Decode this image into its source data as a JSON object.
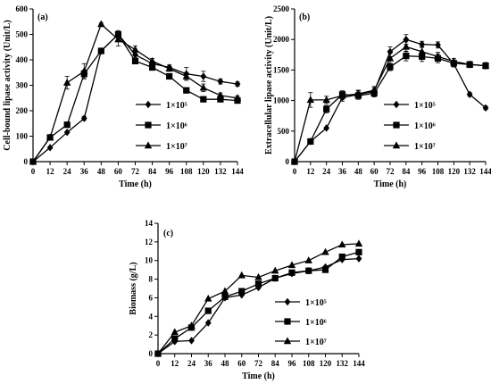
{
  "chart_data": [
    {
      "panel": "(a)",
      "type": "line",
      "xlabel": "Time (h)",
      "ylabel": "Cell-bound lipase activity (Unit/L)",
      "xlim": [
        0,
        144
      ],
      "ylim": [
        0,
        600
      ],
      "x_ticks": [
        0,
        12,
        24,
        36,
        48,
        60,
        72,
        84,
        96,
        108,
        120,
        132,
        144
      ],
      "y_ticks": [
        0,
        100,
        200,
        300,
        400,
        500,
        600
      ],
      "legend_position": "center-right",
      "series": [
        {
          "name": "1×10⁵",
          "marker": "diamond",
          "x": [
            0,
            12,
            24,
            36,
            48,
            60,
            72,
            84,
            96,
            108,
            120,
            132,
            144
          ],
          "y": [
            0,
            55,
            115,
            170,
            435,
            500,
            420,
            385,
            370,
            345,
            335,
            315,
            305
          ],
          "err": [
            0,
            0,
            0,
            8,
            10,
            15,
            12,
            10,
            10,
            25,
            20,
            10,
            8
          ]
        },
        {
          "name": "1×10⁶",
          "marker": "square",
          "x": [
            0,
            12,
            24,
            36,
            48,
            60,
            72,
            84,
            96,
            108,
            120,
            132,
            144
          ],
          "y": [
            0,
            95,
            145,
            345,
            435,
            500,
            395,
            370,
            335,
            280,
            245,
            245,
            240
          ],
          "err": [
            0,
            8,
            0,
            15,
            10,
            10,
            10,
            10,
            10,
            8,
            5,
            5,
            5
          ]
        },
        {
          "name": "1×10⁷",
          "marker": "triangle",
          "x": [
            0,
            12,
            24,
            36,
            48,
            60,
            72,
            84,
            96,
            108,
            120,
            132,
            144
          ],
          "y": [
            0,
            95,
            310,
            355,
            540,
            480,
            440,
            395,
            365,
            335,
            290,
            260,
            250
          ],
          "err": [
            0,
            10,
            25,
            30,
            5,
            25,
            15,
            10,
            10,
            15,
            15,
            10,
            8
          ]
        }
      ]
    },
    {
      "panel": "(b)",
      "type": "line",
      "xlabel": "Time (h)",
      "ylabel": "Extracellular lipase activity (Unit/L)",
      "xlim": [
        0,
        144
      ],
      "ylim": [
        0,
        2500
      ],
      "x_ticks": [
        0,
        12,
        24,
        36,
        48,
        60,
        72,
        84,
        96,
        108,
        120,
        132,
        144
      ],
      "y_ticks": [
        0,
        500,
        1000,
        1500,
        2000,
        2500
      ],
      "legend_position": "center-right",
      "series": [
        {
          "name": "1×10⁵",
          "marker": "diamond",
          "x": [
            0,
            12,
            24,
            36,
            48,
            60,
            72,
            84,
            96,
            108,
            120,
            132,
            144
          ],
          "y": [
            0,
            330,
            550,
            1050,
            1100,
            1150,
            1800,
            2000,
            1920,
            1910,
            1600,
            1100,
            880
          ],
          "err": [
            0,
            0,
            0,
            60,
            60,
            60,
            80,
            80,
            50,
            50,
            50,
            30,
            30
          ]
        },
        {
          "name": "1×10⁶",
          "marker": "square",
          "x": [
            0,
            12,
            24,
            36,
            48,
            60,
            72,
            84,
            96,
            108,
            120,
            132,
            144
          ],
          "y": [
            0,
            330,
            860,
            1100,
            1080,
            1120,
            1550,
            1730,
            1720,
            1690,
            1610,
            1590,
            1570
          ],
          "err": [
            0,
            0,
            60,
            60,
            60,
            60,
            60,
            80,
            80,
            70,
            50,
            50,
            50
          ]
        },
        {
          "name": "1×10⁷",
          "marker": "triangle",
          "x": [
            0,
            12,
            24,
            36,
            48,
            60,
            72,
            84,
            96,
            108,
            120,
            132,
            144
          ],
          "y": [
            0,
            1010,
            1010,
            1080,
            1110,
            1170,
            1690,
            1880,
            1800,
            1720,
            1640,
            1590,
            1570
          ],
          "err": [
            0,
            120,
            60,
            60,
            60,
            60,
            80,
            80,
            80,
            70,
            50,
            50,
            50
          ]
        }
      ]
    },
    {
      "panel": "(c)",
      "type": "line",
      "xlabel": "Time (h)",
      "ylabel": "Biomass (g/L)",
      "xlim": [
        0,
        144
      ],
      "ylim": [
        0,
        14
      ],
      "x_ticks": [
        0,
        12,
        24,
        36,
        48,
        60,
        72,
        84,
        96,
        108,
        120,
        132,
        144
      ],
      "y_ticks": [
        0,
        2,
        4,
        6,
        8,
        10,
        12,
        14
      ],
      "legend_position": "bottom-right",
      "series": [
        {
          "name": "1×10⁵",
          "marker": "diamond",
          "x": [
            0,
            12,
            24,
            36,
            48,
            60,
            72,
            84,
            96,
            108,
            120,
            132,
            144
          ],
          "y": [
            0,
            1.3,
            1.4,
            3.3,
            6.0,
            6.3,
            7.1,
            8.1,
            8.6,
            8.9,
            9.3,
            10.1,
            10.2
          ]
        },
        {
          "name": "1×10⁶",
          "marker": "square",
          "x": [
            0,
            12,
            24,
            36,
            48,
            60,
            72,
            84,
            96,
            108,
            120,
            132,
            144
          ],
          "y": [
            0,
            1.6,
            2.8,
            4.6,
            6.1,
            6.7,
            7.5,
            8.1,
            8.7,
            8.9,
            9.0,
            10.4,
            10.9
          ]
        },
        {
          "name": "1×10⁷",
          "marker": "triangle",
          "x": [
            0,
            12,
            24,
            36,
            48,
            60,
            72,
            84,
            96,
            108,
            120,
            132,
            144
          ],
          "y": [
            0,
            2.3,
            3.0,
            5.9,
            6.7,
            8.4,
            8.2,
            8.9,
            9.5,
            10.0,
            10.9,
            11.7,
            11.8
          ]
        }
      ]
    }
  ]
}
